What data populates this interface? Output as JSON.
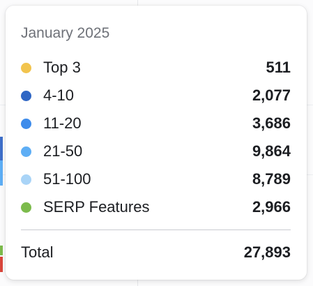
{
  "tooltip": {
    "title": "January 2025",
    "rows": [
      {
        "label": "Top 3",
        "value": "511",
        "color": "#F2C44E"
      },
      {
        "label": "4-10",
        "value": "2,077",
        "color": "#2F66C4"
      },
      {
        "label": "11-20",
        "value": "3,686",
        "color": "#3E8CEB"
      },
      {
        "label": "21-50",
        "value": "9,864",
        "color": "#5EAEF5"
      },
      {
        "label": "51-100",
        "value": "8,789",
        "color": "#A9D4F7"
      },
      {
        "label": "SERP Features",
        "value": "2,966",
        "color": "#7CBB4C"
      }
    ],
    "total_label": "Total",
    "total_value": "27,893"
  }
}
